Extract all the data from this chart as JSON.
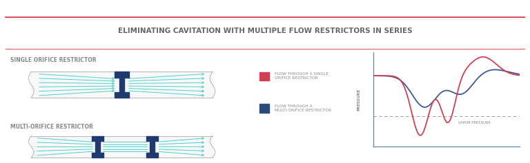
{
  "title": "ELIMINATING CAVITATION WITH MULTIPLE FLOW RESTRICTORS IN SERIES",
  "title_color": "#666666",
  "bg_color": "#ffffff",
  "top_line_color": "#e05060",
  "sub_line_color": "#e05060",
  "label_single": "SINGLE ORIFICE RESTRICTOR",
  "label_multi": "MULTI-ORIFICE RESTRICTOR",
  "label_color": "#888888",
  "legend_1": "FLOW THROUGH A SINGLE\nORIFICE RESTRICTOR",
  "legend_2": "FLOW THROUGH A\nMULTI-ORIFICE RESTRICTOR",
  "legend_color_1": "#d04050",
  "legend_color_2": "#2a4a7a",
  "vapor_pressure_label": "VAPOR PRESSURE",
  "pressure_label": "PRESSURE",
  "teal_color": "#4ecece",
  "dark_blue_color": "#1e3a6e",
  "pipe_border_color": "#bbbbbb",
  "pipe_fill_color": "#f8f8f8",
  "graph_axis_color": "#7090b0",
  "graph_line1_color": "#d04050",
  "graph_line2_color": "#3a5a9a",
  "dashed_line_color": "#999999"
}
